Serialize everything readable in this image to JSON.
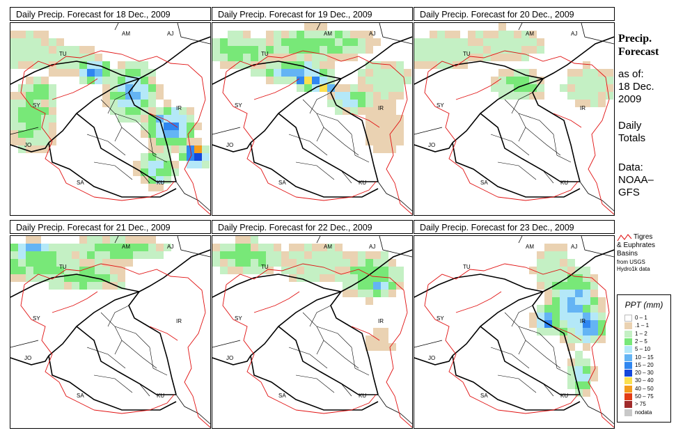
{
  "panels": [
    {
      "title": "Daily Precip. Forecast for  18 Dec., 2009"
    },
    {
      "title": "Daily Precip. Forecast for  19 Dec., 2009"
    },
    {
      "title": "Daily Precip. Forecast for  20 Dec., 2009"
    },
    {
      "title": "Daily Precip. Forecast for  21 Dec., 2009"
    },
    {
      "title": "Daily Precip. Forecast for  22 Dec., 2009"
    },
    {
      "title": "Daily Precip. Forecast for  23 Dec., 2009"
    }
  ],
  "map_labels": [
    "AM",
    "AJ",
    "TU",
    "SY",
    "IR",
    "JO",
    "SA",
    "KU"
  ],
  "sidebar": {
    "title_line1": "Precip.",
    "title_line2": "Forecast",
    "asof": "as of:",
    "date_line1": "18 Dec.",
    "date_line2": "2009",
    "daily_line1": "Daily",
    "daily_line2": "Totals",
    "data_line1": "Data:",
    "data_line2": "NOAA–",
    "data_line3": "GFS"
  },
  "basin_legend": {
    "line1": "Tigres",
    "line2": "& Euphrates",
    "line3": "Basins",
    "line4": "from USGS",
    "line5": "Hydro1k data",
    "color": "#e01010"
  },
  "ppt_legend": {
    "title": "PPT (mm)",
    "items": [
      {
        "label": "0 – 1",
        "color": "#ffffff"
      },
      {
        "label": ".1 – 1",
        "color": "#ead2b2"
      },
      {
        "label": "1 – 2",
        "color": "#c4f0c4"
      },
      {
        "label": "2 – 5",
        "color": "#78e878"
      },
      {
        "label": "5 – 10",
        "color": "#b4e8f8"
      },
      {
        "label": "10 – 15",
        "color": "#64b4f4"
      },
      {
        "label": "15 – 20",
        "color": "#2f86f0"
      },
      {
        "label": "20 – 30",
        "color": "#1448dc"
      },
      {
        "label": "30 – 40",
        "color": "#fbe050"
      },
      {
        "label": "40 – 50",
        "color": "#f49c1c"
      },
      {
        "label": "50 – 75",
        "color": "#e23c14"
      },
      {
        "label": "> 75",
        "color": "#a02a2a"
      },
      {
        "label": "nodata",
        "color": "#c8c8c8"
      }
    ]
  }
}
